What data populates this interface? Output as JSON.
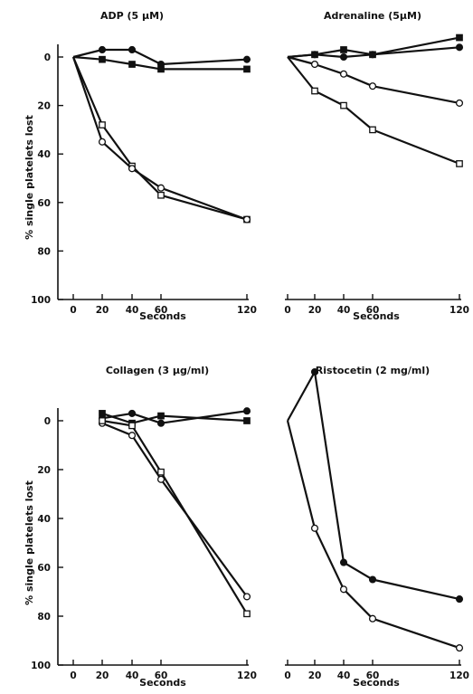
{
  "chart_data": [
    {
      "type": "line",
      "title": "ADP (5 μM)",
      "xlabel": "Seconds",
      "ylabel": "% single platelets lost",
      "xticks": [
        0,
        20,
        40,
        60,
        120
      ],
      "yticks": [
        0,
        20,
        40,
        60,
        80,
        100
      ],
      "ylim": [
        0,
        100
      ],
      "y_inverted": true,
      "series": [
        {
          "marker": "filled-circle",
          "x": [
            0,
            20,
            40,
            60,
            120
          ],
          "y": [
            0,
            -3,
            -3,
            3,
            1
          ]
        },
        {
          "marker": "filled-square",
          "x": [
            0,
            20,
            40,
            60,
            120
          ],
          "y": [
            0,
            1,
            3,
            5,
            5
          ]
        },
        {
          "marker": "open-square",
          "x": [
            0,
            20,
            40,
            60,
            120
          ],
          "y": [
            0,
            28,
            45,
            57,
            67
          ]
        },
        {
          "marker": "open-circle",
          "x": [
            0,
            20,
            40,
            60,
            120
          ],
          "y": [
            0,
            35,
            46,
            54,
            67
          ]
        }
      ]
    },
    {
      "type": "line",
      "title": "Adrenaline (5μM)",
      "xlabel": "Seconds",
      "xticks": [
        0,
        20,
        40,
        60,
        120
      ],
      "y_inverted": true,
      "series": [
        {
          "marker": "filled-square",
          "x": [
            0,
            20,
            40,
            60,
            120
          ],
          "y": [
            0,
            -1,
            -3,
            -1,
            -8
          ]
        },
        {
          "marker": "filled-circle",
          "x": [
            0,
            20,
            40,
            60,
            120
          ],
          "y": [
            0,
            -1,
            0,
            -1,
            -4
          ]
        },
        {
          "marker": "open-circle",
          "x": [
            0,
            20,
            40,
            60,
            120
          ],
          "y": [
            0,
            3,
            7,
            12,
            19
          ]
        },
        {
          "marker": "open-square",
          "x": [
            0,
            20,
            40,
            60,
            120
          ],
          "y": [
            0,
            14,
            20,
            30,
            44
          ]
        }
      ]
    },
    {
      "type": "line",
      "title": "Collagen (3 μg/ml)",
      "xlabel": "Seconds",
      "ylabel": "% single platelets lost",
      "xticks": [
        0,
        20,
        40,
        60,
        120
      ],
      "yticks": [
        0,
        20,
        40,
        60,
        80,
        100
      ],
      "ylim": [
        0,
        100
      ],
      "y_inverted": true,
      "series": [
        {
          "marker": "filled-circle",
          "x": [
            20,
            40,
            60,
            120
          ],
          "y": [
            -1,
            -3,
            1,
            -4
          ]
        },
        {
          "marker": "filled-square",
          "x": [
            20,
            40,
            60,
            120
          ],
          "y": [
            -3,
            1,
            -2,
            0
          ]
        },
        {
          "marker": "open-circle",
          "x": [
            20,
            40,
            60,
            120
          ],
          "y": [
            1,
            6,
            24,
            72
          ]
        },
        {
          "marker": "open-square",
          "x": [
            20,
            40,
            60,
            120
          ],
          "y": [
            0,
            2,
            21,
            79
          ]
        }
      ]
    },
    {
      "type": "line",
      "title": "Ristocetin (2 mg/ml)",
      "xlabel": "Seconds",
      "xticks": [
        0,
        20,
        40,
        60,
        120
      ],
      "y_inverted": true,
      "series": [
        {
          "marker": "filled-circle",
          "x": [
            0,
            20,
            40,
            60,
            120
          ],
          "y": [
            0,
            -20,
            58,
            65,
            73
          ]
        },
        {
          "marker": "open-circle",
          "x": [
            0,
            20,
            40,
            60,
            120
          ],
          "y": [
            0,
            44,
            69,
            81,
            93
          ]
        }
      ]
    }
  ]
}
